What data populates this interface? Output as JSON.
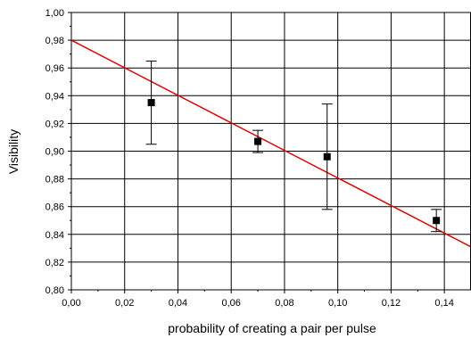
{
  "chart_data": {
    "type": "scatter",
    "xlabel": "probability of creating a pair per pulse",
    "ylabel": "Visibility",
    "xlim": [
      0.0,
      0.15
    ],
    "ylim": [
      0.8,
      1.0
    ],
    "x_ticks": [
      "0,00",
      "0,02",
      "0,04",
      "0,06",
      "0,08",
      "0,10",
      "0,12",
      "0,14"
    ],
    "y_ticks": [
      "0,80",
      "0,82",
      "0,84",
      "0,86",
      "0,88",
      "0,90",
      "0,92",
      "0,94",
      "0,96",
      "0,98",
      "1,00"
    ],
    "grid": true,
    "points": [
      {
        "x": 0.03,
        "y": 0.935,
        "err_low": 0.905,
        "err_high": 0.965
      },
      {
        "x": 0.07,
        "y": 0.907,
        "err_low": 0.899,
        "err_high": 0.915
      },
      {
        "x": 0.096,
        "y": 0.896,
        "err_low": 0.858,
        "err_high": 0.934
      },
      {
        "x": 0.137,
        "y": 0.85,
        "err_low": 0.842,
        "err_high": 0.858
      }
    ],
    "fit_line": {
      "x": [
        0.0,
        0.15
      ],
      "y": [
        0.98,
        0.831
      ],
      "color": "#e00000"
    }
  }
}
